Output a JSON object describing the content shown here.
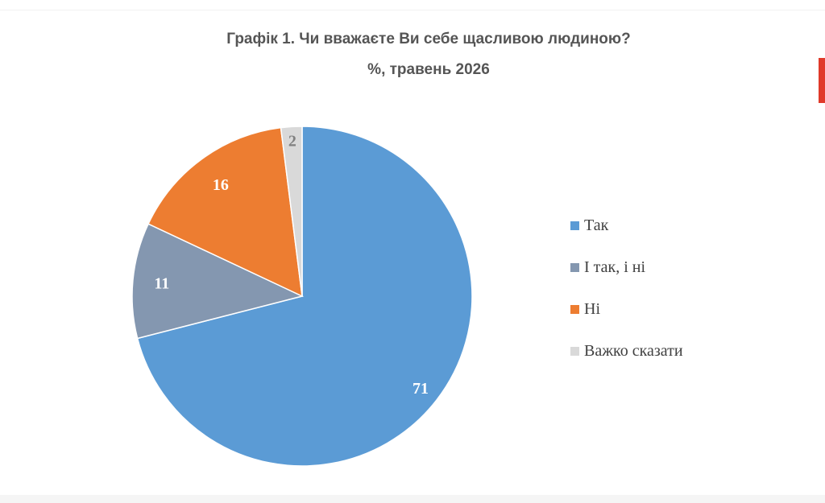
{
  "chart_data": {
    "type": "pie",
    "title": "Графік 1. Чи вважаєте Ви себе щасливою людиною?",
    "subtitle": "%, травень 2026",
    "categories": [
      "Так",
      "І так, і ні",
      "Ні",
      "Важко сказати"
    ],
    "values": [
      71,
      11,
      16,
      2
    ],
    "value_labels": [
      "71",
      "11",
      "16",
      "2"
    ],
    "colors": [
      "#5b9bd5",
      "#8497b0",
      "#ed7d31",
      "#d9d9d9"
    ],
    "label_colors": [
      "#ffffff",
      "#ffffff",
      "#ffffff",
      "#808080"
    ],
    "slice_order": [
      "Так",
      "І так, і ні",
      "Ні",
      "Важко сказати"
    ],
    "start_angle": "12 o'clock",
    "direction": "clockwise",
    "legend_position": "right"
  }
}
